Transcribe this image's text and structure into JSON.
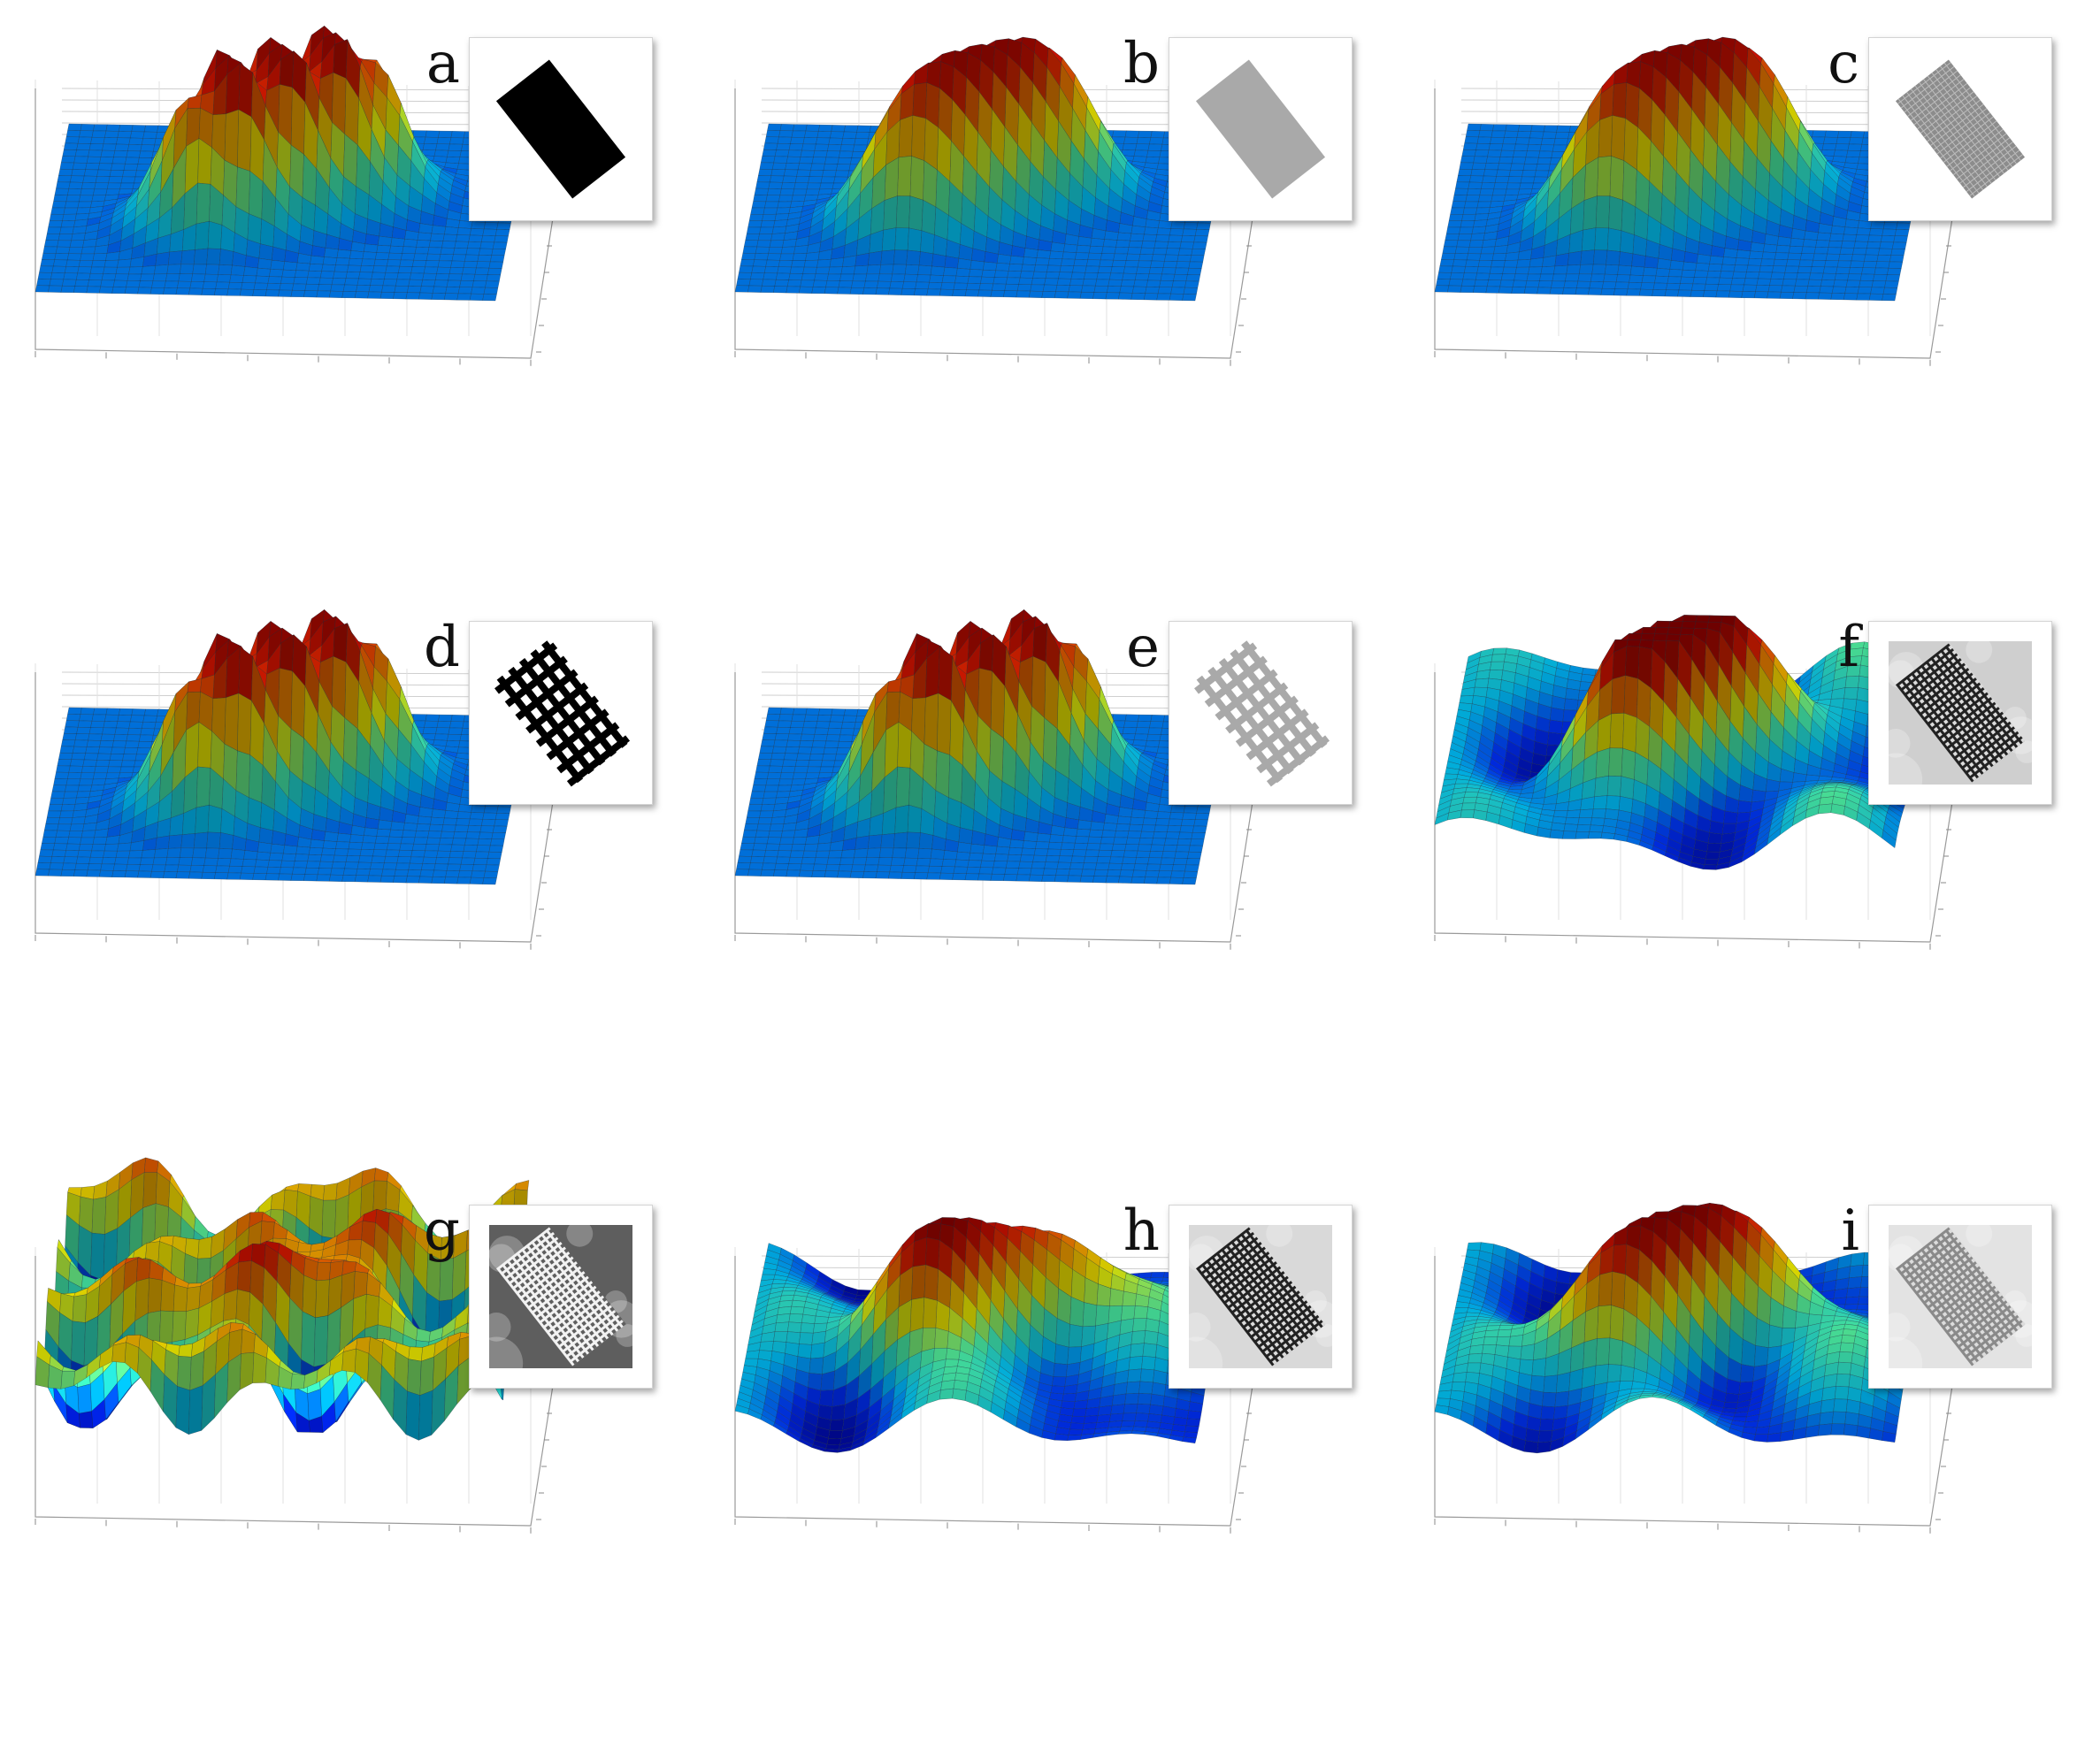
{
  "figure": {
    "panels": [
      {
        "label": "a",
        "kind": "flat",
        "inset": {
          "style": "solid",
          "shape": "black",
          "bg": "white"
        }
      },
      {
        "label": "b",
        "kind": "smooth",
        "inset": {
          "style": "solid",
          "shape": "#a9a9a9",
          "bg": "white"
        }
      },
      {
        "label": "c",
        "kind": "smooth",
        "inset": {
          "style": "fine-grid",
          "shape": "#8c8c8c",
          "bg": "white"
        }
      },
      {
        "label": "d",
        "kind": "flat",
        "inset": {
          "style": "lattice",
          "shape": "black",
          "bg": "white"
        }
      },
      {
        "label": "e",
        "kind": "flat",
        "inset": {
          "style": "lattice",
          "shape": "#a9a9a9",
          "bg": "white"
        }
      },
      {
        "label": "f",
        "kind": "wavy",
        "inset": {
          "style": "mesh",
          "shape": "#222222",
          "bg": "#cfcfcf"
        }
      },
      {
        "label": "g",
        "kind": "chaotic",
        "inset": {
          "style": "mesh",
          "shape": "#f2f2f2",
          "bg": "#5e5e5e"
        }
      },
      {
        "label": "h",
        "kind": "wavy",
        "inset": {
          "style": "mesh",
          "shape": "#222222",
          "bg": "#d9d9d9"
        }
      },
      {
        "label": "i",
        "kind": "wavy",
        "inset": {
          "style": "mesh",
          "shape": "#8a8a8a",
          "bg": "#e3e3e3"
        }
      }
    ],
    "colormap": [
      "#00008f",
      "#0030ff",
      "#00c8ff",
      "#4fffb0",
      "#ffff00",
      "#ff9a00",
      "#e21400",
      "#800000"
    ]
  }
}
